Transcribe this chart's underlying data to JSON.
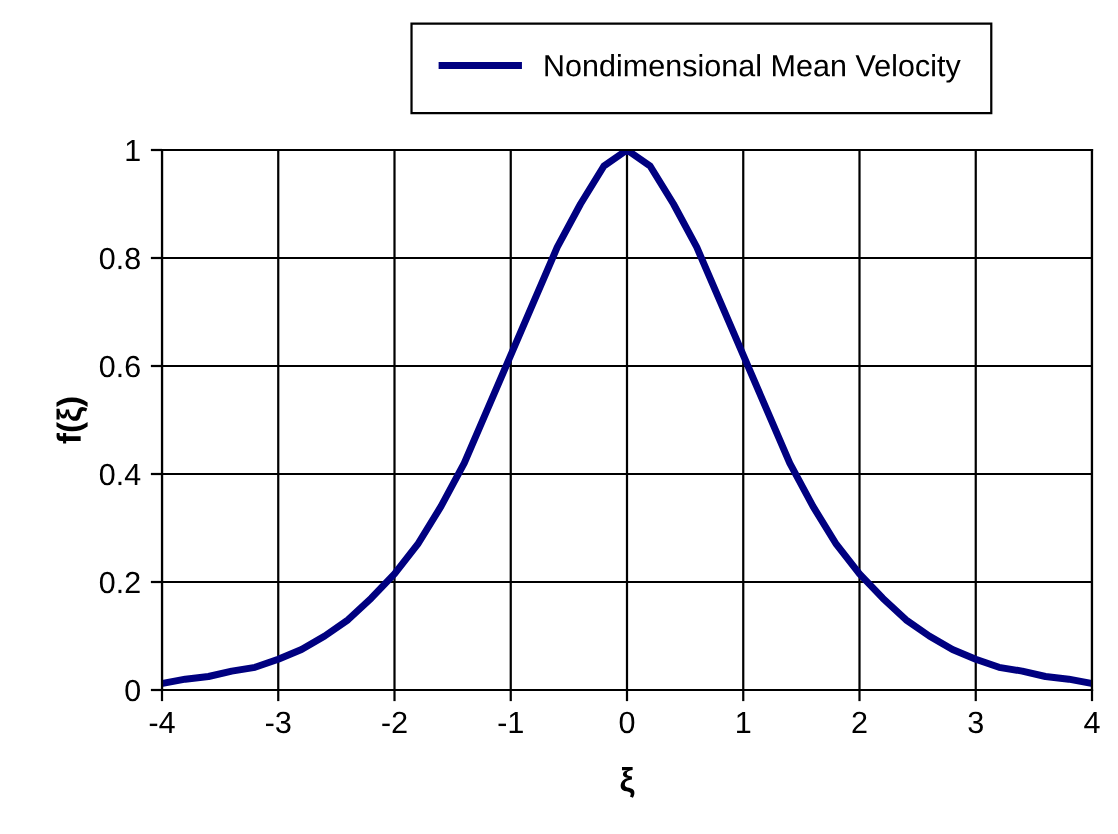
{
  "chart_data": {
    "type": "line",
    "xlabel": "ξ",
    "ylabel": "f(ξ)",
    "x": [
      -4,
      -3.8,
      -3.6,
      -3.4,
      -3.2,
      -3,
      -2.8,
      -2.6,
      -2.4,
      -2.2,
      -2,
      -1.8,
      -1.6,
      -1.4,
      -1.2,
      -1,
      -0.8,
      -0.6,
      -0.4,
      -0.2,
      0,
      0.2,
      0.4,
      0.6,
      0.8,
      1,
      1.2,
      1.4,
      1.6,
      1.8,
      2,
      2.2,
      2.4,
      2.6,
      2.8,
      3,
      3.2,
      3.4,
      3.6,
      3.8,
      4
    ],
    "series": [
      {
        "name": "Nondimensional Mean Velocity",
        "color": "#000080",
        "values": [
          0.012,
          0.02,
          0.025,
          0.035,
          0.042,
          0.057,
          0.075,
          0.1,
          0.13,
          0.17,
          0.215,
          0.27,
          0.34,
          0.42,
          0.52,
          0.62,
          0.72,
          0.82,
          0.9,
          0.97,
          1,
          0.97,
          0.9,
          0.82,
          0.72,
          0.62,
          0.52,
          0.42,
          0.34,
          0.27,
          0.215,
          0.17,
          0.13,
          0.1,
          0.075,
          0.057,
          0.042,
          0.035,
          0.025,
          0.02,
          0.012
        ]
      }
    ],
    "xlim": [
      -4,
      4
    ],
    "xticks": [
      -4,
      -3,
      -2,
      -1,
      0,
      1,
      2,
      3,
      4
    ],
    "ylim": [
      0,
      1
    ],
    "yticks": [
      0,
      0.2,
      0.4,
      0.6,
      0.8,
      1
    ],
    "grid": true,
    "legend": "top",
    "marker": "none",
    "line_style": "solid"
  }
}
